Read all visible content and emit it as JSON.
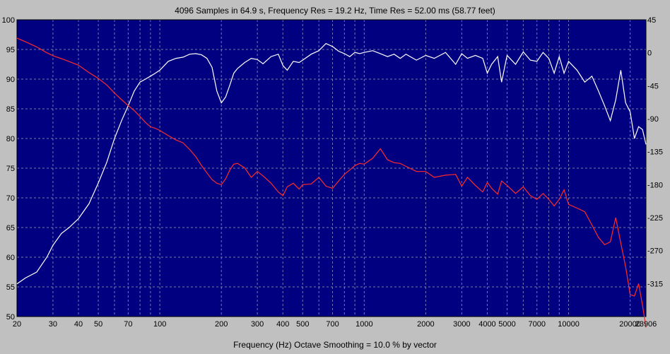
{
  "window": {
    "title": "4096 Samples in 64.9 s, Frequency Res = 19.2 Hz, Time Res = 52.00 ms (58.77 feet)",
    "xlabel": "Frequency (Hz) Octave Smoothing = 10.0 % by vector"
  },
  "colors": {
    "plot_background": "#000080",
    "grid": "#a0a0c8",
    "magnitude": "#ffffff",
    "phase": "#ff2a2a",
    "frame": "#c0c0c0"
  },
  "chart_data": {
    "type": "line",
    "title": "4096 Samples in 64.9 s, Frequency Res = 19.2 Hz, Time Res = 52.00 ms (58.77 feet)",
    "xlabel": "Frequency (Hz) Octave Smoothing = 10.0 % by vector",
    "xscale": "log",
    "xlim": [
      20,
      23906
    ],
    "ylim_left": [
      50,
      100
    ],
    "ylim_right": [
      -360,
      45
    ],
    "grid": true,
    "x_tick_labels": [
      "20",
      "30",
      "40",
      "50",
      "70",
      "100",
      "200",
      "300",
      "400",
      "500",
      "700",
      "1000",
      "2000",
      "3000",
      "4000",
      "5000",
      "7000",
      "10000",
      "20000",
      "23906"
    ],
    "x_tick_values": [
      20,
      30,
      40,
      50,
      70,
      100,
      200,
      300,
      400,
      500,
      700,
      1000,
      2000,
      3000,
      4000,
      5000,
      7000,
      10000,
      20000,
      23906
    ],
    "y_left_tick_labels": [
      "100",
      "95",
      "90",
      "85",
      "80",
      "75",
      "70",
      "65",
      "60",
      "55",
      "50"
    ],
    "y_left_tick_values": [
      100,
      95,
      90,
      85,
      80,
      75,
      70,
      65,
      60,
      55,
      50
    ],
    "y_right_tick_labels": [
      "45",
      "0",
      "-45",
      "-90",
      "-135",
      "-180",
      "-225",
      "-270",
      "-315"
    ],
    "y_right_tick_values": [
      45,
      0,
      -45,
      -90,
      -135,
      -180,
      -225,
      -270,
      -315
    ],
    "series": [
      {
        "axis": "left",
        "x": [
          20,
          22,
          25,
          28,
          30,
          33,
          36,
          40,
          45,
          50,
          55,
          60,
          65,
          70,
          75,
          80,
          85,
          90,
          95,
          100,
          110,
          120,
          130,
          140,
          150,
          160,
          170,
          180,
          190,
          200,
          210,
          220,
          230,
          240,
          260,
          280,
          300,
          320,
          350,
          380,
          400,
          420,
          450,
          480,
          500,
          550,
          600,
          650,
          700,
          750,
          800,
          850,
          900,
          950,
          1000,
          1100,
          1200,
          1300,
          1400,
          1500,
          1600,
          1800,
          2000,
          2200,
          2500,
          2800,
          3000,
          3200,
          3500,
          3800,
          4000,
          4200,
          4500,
          4700,
          5000,
          5500,
          6000,
          6500,
          7000,
          7500,
          8000,
          8500,
          9000,
          9500,
          10000,
          11000,
          12000,
          13000,
          14000,
          15000,
          16000,
          17000,
          18000,
          19000,
          20000,
          21000,
          22000,
          23000,
          23906
        ],
        "values": [
          55.5,
          56.5,
          57.5,
          60,
          62,
          64,
          65,
          66.5,
          69,
          72.5,
          76,
          80,
          83,
          85.5,
          88,
          89.5,
          90,
          90.5,
          91,
          91.5,
          93,
          93.5,
          93.7,
          94.2,
          94.3,
          94.1,
          93.5,
          92,
          88,
          86,
          87,
          89,
          91,
          91.8,
          92.8,
          93.5,
          93.3,
          92.6,
          93.8,
          94.2,
          92.3,
          91.5,
          93,
          92.8,
          93.2,
          94.2,
          94.8,
          96,
          95.5,
          94.7,
          94.3,
          93.8,
          94.5,
          94.3,
          94.5,
          94.8,
          94.3,
          93.8,
          94.2,
          93.5,
          94.2,
          93.2,
          94,
          93.5,
          94.5,
          92.5,
          94.3,
          93.5,
          94,
          93.5,
          91,
          92.5,
          93.8,
          89.5,
          94,
          92.5,
          94.6,
          93.2,
          93,
          94.5,
          93.5,
          91,
          93.8,
          91,
          93,
          91.5,
          89.5,
          90.5,
          88,
          85.5,
          83,
          86.5,
          91.5,
          86,
          84.5,
          80,
          82,
          81.5,
          79
        ]
      },
      {
        "axis": "right",
        "x": [
          20,
          22,
          25,
          28,
          30,
          33,
          36,
          40,
          45,
          50,
          55,
          60,
          65,
          70,
          75,
          80,
          85,
          90,
          95,
          100,
          110,
          120,
          130,
          140,
          150,
          160,
          170,
          180,
          190,
          200,
          210,
          220,
          230,
          240,
          260,
          280,
          300,
          320,
          350,
          380,
          400,
          420,
          450,
          480,
          500,
          550,
          600,
          650,
          700,
          750,
          800,
          850,
          900,
          950,
          1000,
          1100,
          1200,
          1300,
          1400,
          1500,
          1600,
          1800,
          2000,
          2200,
          2500,
          2800,
          3000,
          3200,
          3500,
          3800,
          4000,
          4200,
          4500,
          4700,
          5000,
          5500,
          6000,
          6500,
          7000,
          7500,
          8000,
          8500,
          9000,
          9500,
          10000,
          11000,
          12000,
          13000,
          14000,
          15000,
          16000,
          17000,
          18000,
          19000,
          20000,
          21000,
          22000,
          23000,
          23906
        ],
        "values": [
          20,
          15,
          8,
          0,
          -4,
          -8,
          -12,
          -17,
          -27,
          -35,
          -44,
          -55,
          -64,
          -72,
          -79,
          -87,
          -95,
          -101,
          -103,
          -106,
          -113,
          -119,
          -123,
          -132,
          -142,
          -154,
          -164,
          -173,
          -178,
          -180,
          -172,
          -160,
          -152,
          -151,
          -157,
          -170,
          -162,
          -168,
          -178,
          -190,
          -195,
          -183,
          -178,
          -186,
          -180,
          -179,
          -170,
          -182,
          -185,
          -175,
          -166,
          -160,
          -154,
          -151,
          -152,
          -144,
          -131,
          -146,
          -150,
          -151,
          -155,
          -162,
          -162,
          -170,
          -167,
          -166,
          -182,
          -170,
          -181,
          -190,
          -177,
          -185,
          -193,
          -175,
          -181,
          -192,
          -183,
          -195,
          -200,
          -192,
          -200,
          -209,
          -200,
          -187,
          -207,
          -212,
          -217,
          -235,
          -252,
          -262,
          -258,
          -225,
          -260,
          -292,
          -330,
          -332,
          -315,
          -345,
          -375
        ]
      }
    ]
  }
}
